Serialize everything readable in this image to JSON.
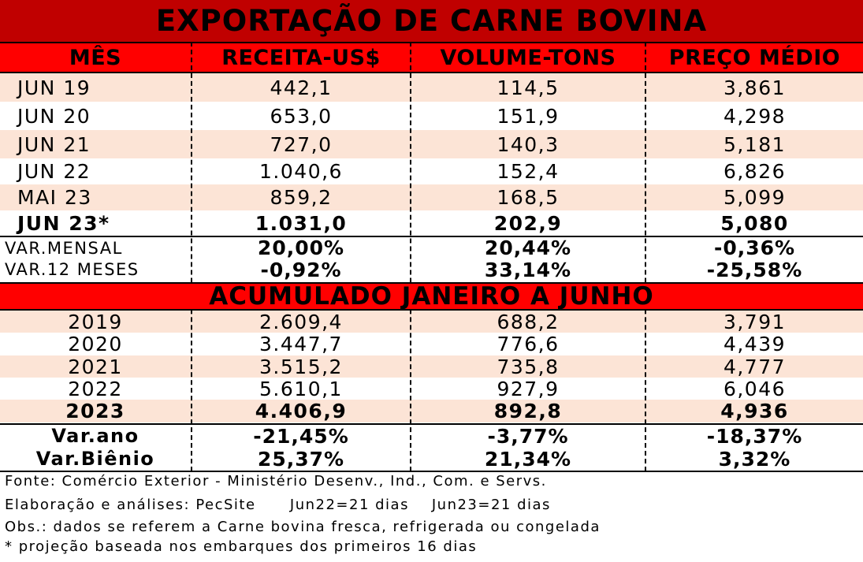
{
  "title": "EXPORTAÇÃO DE CARNE BOVINA",
  "headers": [
    "MÊS",
    "RECEITA-US$",
    "VOLUME-TONS",
    "PREÇO MÉDIO"
  ],
  "monthly": [
    {
      "mes": "JUN 19",
      "receita": "442,1",
      "volume": "114,5",
      "preco": "3,861"
    },
    {
      "mes": "JUN 20",
      "receita": "653,0",
      "volume": "151,9",
      "preco": "4,298"
    },
    {
      "mes": "JUN 21",
      "receita": "727,0",
      "volume": "140,3",
      "preco": "5,181"
    },
    {
      "mes": "JUN 22",
      "receita": "1.040,6",
      "volume": "152,4",
      "preco": "6,826"
    },
    {
      "mes": "MAI 23",
      "receita": "859,2",
      "volume": "168,5",
      "preco": "5,099"
    },
    {
      "mes": "JUN 23*",
      "receita": "1.031,0",
      "volume": "202,9",
      "preco": "5,080"
    }
  ],
  "monthly_vars": [
    {
      "label": "VAR.MENSAL",
      "receita": "20,00%",
      "volume": "20,44%",
      "preco": "-0,36%"
    },
    {
      "label": "VAR.12 MESES",
      "receita": "-0,92%",
      "volume": "33,14%",
      "preco": "-25,58%"
    }
  ],
  "accumulated_title": "ACUMULADO JANEIRO A JUNHO",
  "accumulated": [
    {
      "ano": "2019",
      "receita": "2.609,4",
      "volume": "688,2",
      "preco": "3,791"
    },
    {
      "ano": "2020",
      "receita": "3.447,7",
      "volume": "776,6",
      "preco": "4,439"
    },
    {
      "ano": "2021",
      "receita": "3.515,2",
      "volume": "735,8",
      "preco": "4,777"
    },
    {
      "ano": "2022",
      "receita": "5.610,1",
      "volume": "927,9",
      "preco": "6,046"
    },
    {
      "ano": "2023",
      "receita": "4.406,9",
      "volume": "892,8",
      "preco": "4,936"
    }
  ],
  "accumulated_vars": [
    {
      "label": "Var.ano",
      "receita": "-21,45%",
      "volume": "-3,77%",
      "preco": "-18,37%"
    },
    {
      "label": "Var.Biênio",
      "receita": "25,37%",
      "volume": "21,34%",
      "preco": "3,32%"
    }
  ],
  "footnotes": [
    "Fonte: Comércio Exterior - Ministério Desenv., Ind., Com. e Servs.",
    "Elaboração e análises: PecSite      Jun22=21 dias    Jun23=21 dias",
    "Obs.: dados se referem a Carne bovina fresca, refrigerada ou congelada",
    "* projeção baseada nos embarques dos primeiros 16 dias"
  ],
  "colors": {
    "title_bg": "#c00000",
    "header_bg": "#ff0000",
    "shade": "#fce4d6"
  }
}
